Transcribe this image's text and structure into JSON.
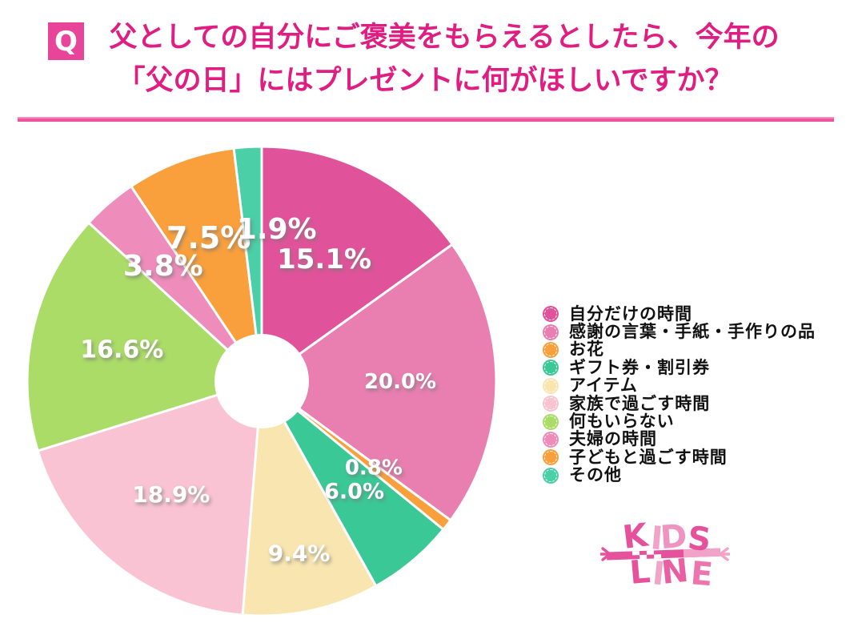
{
  "header": {
    "q_badge": "Q",
    "q_badge_color": "#e8459a",
    "title_line1": "父としての自分にご褒美をもらえるとしたら、今年の",
    "title_line2": "「父の日」にはプレゼントに何がほしいですか？",
    "title_color": "#e01e82",
    "divider_color": "#ee539d"
  },
  "chart_data": {
    "type": "pie",
    "shape": "donut",
    "title": "父としての自分にご褒美をもらえるとしたら、今年の「父の日」にはプレゼントに何がほしいですか？",
    "start_angle_deg": 0,
    "direction": "clockwise",
    "categories": [
      "自分だけの時間",
      "感謝の言葉・手紙・手作りの品",
      "お花",
      "ギフト券・割引券",
      "アイテム",
      "家族で過ごす時間",
      "何もいらない",
      "夫婦の時間",
      "子どもと過ごす時間",
      "その他"
    ],
    "values": [
      15.1,
      20.0,
      0.8,
      6.0,
      9.4,
      18.9,
      16.6,
      3.8,
      7.5,
      1.9
    ],
    "labels": [
      "15.1%",
      "20.0%",
      "0.8%",
      "6.0%",
      "9.4%",
      "18.9%",
      "16.6%",
      "3.8%",
      "7.5%",
      "1.9%"
    ],
    "unit": "%",
    "colors": [
      "#e0539a",
      "#e87fb0",
      "#f9a03c",
      "#3bc897",
      "#f8e5b0",
      "#f9c3d3",
      "#abdc68",
      "#ee8cbb",
      "#f9a03c",
      "#4bcfa6"
    ],
    "legend_position": "right",
    "label_color": "#ffffff",
    "layout": {
      "outer_radius": 293,
      "hole_radius": 59,
      "label_radius": [
        171,
        173,
        177,
        180,
        220,
        181,
        179,
        189,
        191,
        190
      ],
      "label_dx": [
        0,
        0,
        0,
        0,
        0,
        0,
        0,
        0,
        0,
        30
      ],
      "label_font_size": [
        34,
        26,
        26,
        27,
        28,
        28,
        30,
        36,
        38,
        36
      ]
    }
  },
  "logo": {
    "line1": "KIDS",
    "line2": "LINE",
    "color_dark": "#e6519c",
    "color_mid": "#ee74ad",
    "color_light": "#f2a3c8",
    "letter_colors_line1": [
      "#e6519c",
      "#f2a3c8",
      "#ef93c1",
      "#e6519c"
    ],
    "letter_colors_line2": [
      "#e6519c",
      "#f2a3c8",
      "#ea5ea2",
      "#ee74ad"
    ]
  }
}
